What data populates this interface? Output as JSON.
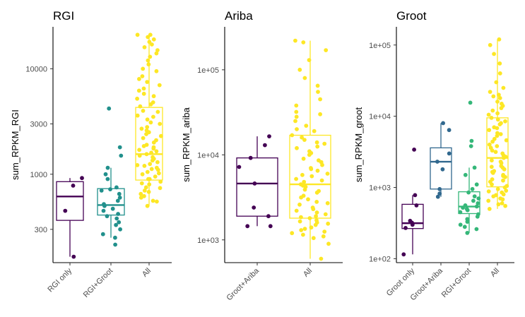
{
  "chart_data": [
    {
      "type": "boxplot",
      "title": "RGI",
      "ylabel": "sum_RPKM_RGI",
      "xlabel": "",
      "scale": "log10",
      "ylim": [
        145,
        25000
      ],
      "yticks": [
        300,
        1000,
        3000,
        10000
      ],
      "ytick_labels": [
        "300",
        "1000",
        "3000",
        "10000"
      ],
      "grid": false,
      "legend": "none",
      "categories": [
        "RGI only",
        "RGI+Groot",
        "All"
      ],
      "colors": [
        "#440154",
        "#21908C",
        "#FDE725"
      ],
      "boxes": [
        {
          "min": 165,
          "q1": 365,
          "median": 615,
          "q3": 850,
          "max": 920
        },
        {
          "min": 250,
          "q1": 410,
          "median": 510,
          "q3": 730,
          "max": 1150
        },
        {
          "min": 500,
          "q1": 880,
          "median": 1550,
          "q3": 4300,
          "max": 21000
        }
      ],
      "points": [
        [
          165,
          450,
          780,
          920
        ],
        [
          215,
          250,
          270,
          300,
          330,
          350,
          380,
          400,
          420,
          450,
          470,
          500,
          520,
          560,
          600,
          650,
          700,
          720,
          750,
          900,
          1000,
          1150,
          1500,
          1800,
          4200
        ],
        [
          500,
          550,
          600,
          650,
          700,
          750,
          800,
          850,
          900,
          950,
          1000,
          1050,
          1100,
          1150,
          1200,
          1250,
          1300,
          1400,
          1500,
          1600,
          1700,
          1800,
          1900,
          2000,
          2200,
          2400,
          2600,
          2800,
          3000,
          3300,
          3600,
          4000,
          4400,
          4800,
          5200,
          5800,
          6500,
          7500,
          8500,
          9500,
          11000,
          13000,
          15000,
          17000,
          19000,
          21000,
          21000,
          20000,
          18000,
          560,
          620,
          680,
          740,
          820,
          900,
          1020,
          1120,
          1220,
          1350,
          1450,
          1550,
          1650,
          1750,
          1850,
          2100,
          2300,
          2500,
          2700,
          3100,
          3500,
          3900,
          4600,
          5500,
          6200,
          7000,
          8000,
          10000,
          12000,
          14000,
          16000
        ]
      ]
    },
    {
      "type": "boxplot",
      "title": "Ariba",
      "ylabel": "sum_RPKM_ariba",
      "xlabel": "",
      "scale": "log10",
      "ylim": [
        540,
        320000
      ],
      "yticks": [
        1000,
        10000,
        100000
      ],
      "ytick_labels": [
        "1e+03",
        "1e+04",
        "1e+05"
      ],
      "grid": false,
      "legend": "none",
      "categories": [
        "Groot+Ariba",
        "All"
      ],
      "colors": [
        "#440154",
        "#FDE725"
      ],
      "boxes": [
        {
          "min": 1450,
          "q1": 1900,
          "median": 4600,
          "q3": 9200,
          "max": 16500
        },
        {
          "min": 600,
          "q1": 1800,
          "median": 4500,
          "q3": 17000,
          "max": 220000
        }
      ],
      "points": [
        [
          1450,
          1450,
          1900,
          2400,
          4600,
          7200,
          9200,
          13000,
          16500
        ],
        [
          600,
          900,
          1050,
          1100,
          1150,
          1200,
          1300,
          1400,
          1500,
          1600,
          1700,
          1800,
          1900,
          2000,
          2100,
          2200,
          2400,
          2600,
          2800,
          3000,
          3300,
          3600,
          3900,
          4200,
          4500,
          4800,
          5200,
          5600,
          6000,
          6500,
          7000,
          7600,
          8200,
          9000,
          10000,
          11000,
          12000,
          13500,
          15000,
          17000,
          19000,
          22000,
          25000,
          28000,
          32000,
          38000,
          45000,
          55000,
          65000,
          80000,
          100000,
          130000,
          170000,
          210000,
          220000,
          1250,
          1350,
          1550,
          1650,
          1850,
          2300,
          2700,
          3150,
          3750,
          4350,
          5000,
          5800,
          6800,
          8600,
          10500,
          12500,
          14000,
          16000,
          20000,
          30000
        ]
      ]
    },
    {
      "type": "boxplot",
      "title": "Groot",
      "ylabel": "sum_RPKM_groot",
      "xlabel": "",
      "scale": "log10",
      "ylim": [
        88,
        180000
      ],
      "yticks": [
        100,
        1000,
        10000,
        100000
      ],
      "ytick_labels": [
        "1e+02",
        "1e+03",
        "1e+04",
        "1e+05"
      ],
      "grid": false,
      "legend": "none",
      "categories": [
        "Groot only",
        "Groot+Ariba",
        "RGI+Groot",
        "All"
      ],
      "colors": [
        "#440154",
        "#31688E",
        "#35B779",
        "#FDE725"
      ],
      "boxes": [
        {
          "min": 115,
          "q1": 265,
          "median": 315,
          "q3": 580,
          "max": 780
        },
        {
          "min": 740,
          "q1": 950,
          "median": 2300,
          "q3": 3600,
          "max": 8000
        },
        {
          "min": 230,
          "q1": 430,
          "median": 540,
          "q3": 870,
          "max": 1900
        },
        {
          "min": 500,
          "q1": 1020,
          "median": 2600,
          "q3": 9500,
          "max": 120000
        }
      ],
      "points": [
        [
          115,
          270,
          300,
          320,
          340,
          560,
          780,
          3400
        ],
        [
          740,
          820,
          950,
          1800,
          2300,
          3000,
          6400,
          8000
        ],
        [
          230,
          260,
          280,
          300,
          330,
          360,
          390,
          420,
          450,
          480,
          500,
          520,
          540,
          560,
          600,
          650,
          700,
          750,
          850,
          950,
          1100,
          1500,
          1900,
          3800,
          4500,
          15500
        ],
        [
          500,
          550,
          600,
          650,
          700,
          750,
          800,
          850,
          900,
          950,
          1000,
          1100,
          1200,
          1300,
          1400,
          1500,
          1600,
          1700,
          1800,
          1900,
          2000,
          2200,
          2400,
          2600,
          2800,
          3000,
          3300,
          3600,
          4000,
          4400,
          4800,
          5300,
          5800,
          6400,
          7000,
          7700,
          8500,
          9500,
          10500,
          12000,
          14000,
          16000,
          18000,
          20000,
          22000,
          25000,
          30000,
          40000,
          55000,
          75000,
          100000,
          120000,
          580,
          680,
          780,
          880,
          1050,
          1250,
          1450,
          1650,
          1950,
          2300,
          2700,
          3150,
          3800,
          4600,
          5600,
          6800,
          8000,
          9000,
          11000,
          13000,
          15000,
          19000
        ]
      ]
    }
  ]
}
